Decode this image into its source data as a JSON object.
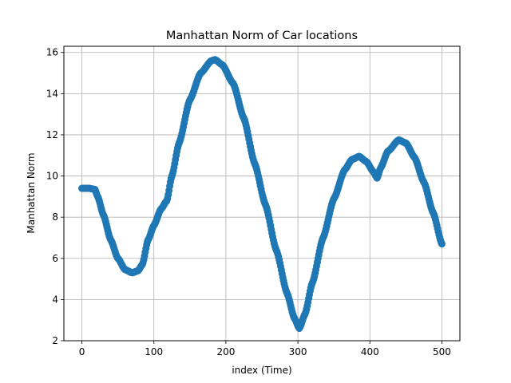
{
  "chart_data": {
    "type": "scatter",
    "title": "Manhattan Norm of Car locations",
    "xlabel": "index (Time)",
    "ylabel": "Manhattan Norm",
    "xlim": [
      -25,
      525
    ],
    "ylim": [
      2,
      16.3
    ],
    "xticks": [
      0,
      100,
      200,
      300,
      400,
      500
    ],
    "yticks": [
      2,
      4,
      6,
      8,
      10,
      12,
      14,
      16
    ],
    "grid": true,
    "series": [
      {
        "color": "#1f77b4",
        "keypoints": [
          [
            0,
            9.4
          ],
          [
            10,
            9.4
          ],
          [
            18,
            9.35
          ],
          [
            22,
            9.0
          ],
          [
            30,
            8.1
          ],
          [
            40,
            6.9
          ],
          [
            50,
            6.0
          ],
          [
            60,
            5.45
          ],
          [
            70,
            5.3
          ],
          [
            78,
            5.4
          ],
          [
            84,
            5.7
          ],
          [
            92,
            6.9
          ],
          [
            100,
            7.6
          ],
          [
            110,
            8.4
          ],
          [
            118,
            8.8
          ],
          [
            125,
            10.0
          ],
          [
            135,
            11.6
          ],
          [
            150,
            13.7
          ],
          [
            165,
            15.0
          ],
          [
            180,
            15.6
          ],
          [
            185,
            15.65
          ],
          [
            195,
            15.4
          ],
          [
            210,
            14.5
          ],
          [
            225,
            12.8
          ],
          [
            240,
            10.6
          ],
          [
            255,
            8.6
          ],
          [
            270,
            6.4
          ],
          [
            285,
            4.3
          ],
          [
            295,
            3.1
          ],
          [
            302,
            2.6
          ],
          [
            310,
            3.3
          ],
          [
            320,
            4.8
          ],
          [
            335,
            7.0
          ],
          [
            350,
            8.9
          ],
          [
            365,
            10.3
          ],
          [
            375,
            10.8
          ],
          [
            385,
            10.95
          ],
          [
            395,
            10.7
          ],
          [
            405,
            10.2
          ],
          [
            410,
            9.9
          ],
          [
            415,
            10.4
          ],
          [
            425,
            11.2
          ],
          [
            440,
            11.75
          ],
          [
            450,
            11.6
          ],
          [
            462,
            10.9
          ],
          [
            475,
            9.7
          ],
          [
            488,
            8.2
          ],
          [
            500,
            6.7
          ]
        ]
      }
    ]
  }
}
